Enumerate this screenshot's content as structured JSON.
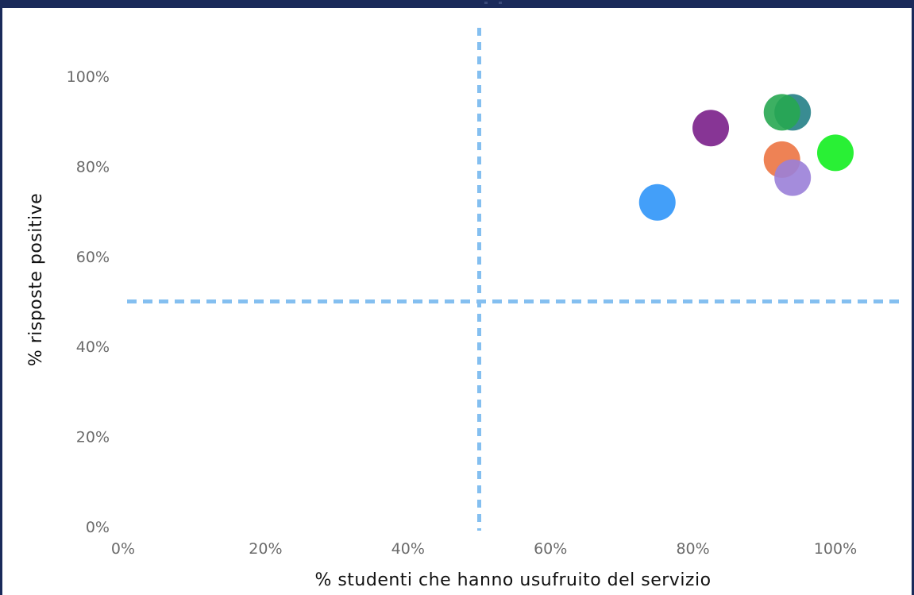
{
  "chart_data": {
    "type": "scatter",
    "title": "",
    "xlabel": "% studenti che hanno usufruito del servizio",
    "ylabel": "% risposte positive",
    "xlim": [
      0,
      110
    ],
    "ylim": [
      0,
      110
    ],
    "x_ticks": [
      "0%",
      "20%",
      "40%",
      "60%",
      "80%",
      "100%"
    ],
    "x_tick_values": [
      0,
      20,
      40,
      60,
      80,
      100
    ],
    "y_ticks": [
      "0%",
      "20%",
      "40%",
      "60%",
      "80%",
      "100%"
    ],
    "y_tick_values": [
      0,
      20,
      40,
      60,
      80,
      100
    ],
    "reference_lines": {
      "x": 50,
      "y": 50,
      "color": "#84bff0",
      "style": "dashed"
    },
    "grid": false,
    "legend": "none",
    "points": [
      {
        "x": 75,
        "y": 72,
        "color": "#2f95f8"
      },
      {
        "x": 82.5,
        "y": 88.5,
        "color": "#7a1f8a"
      },
      {
        "x": 94,
        "y": 92,
        "color": "#237f86"
      },
      {
        "x": 92.5,
        "y": 92,
        "color": "#27a751"
      },
      {
        "x": 100,
        "y": 83,
        "color": "#12ee1f"
      },
      {
        "x": 92.5,
        "y": 81.5,
        "color": "#ec7442"
      },
      {
        "x": 94,
        "y": 77.5,
        "color": "#9a7fd8"
      }
    ]
  }
}
